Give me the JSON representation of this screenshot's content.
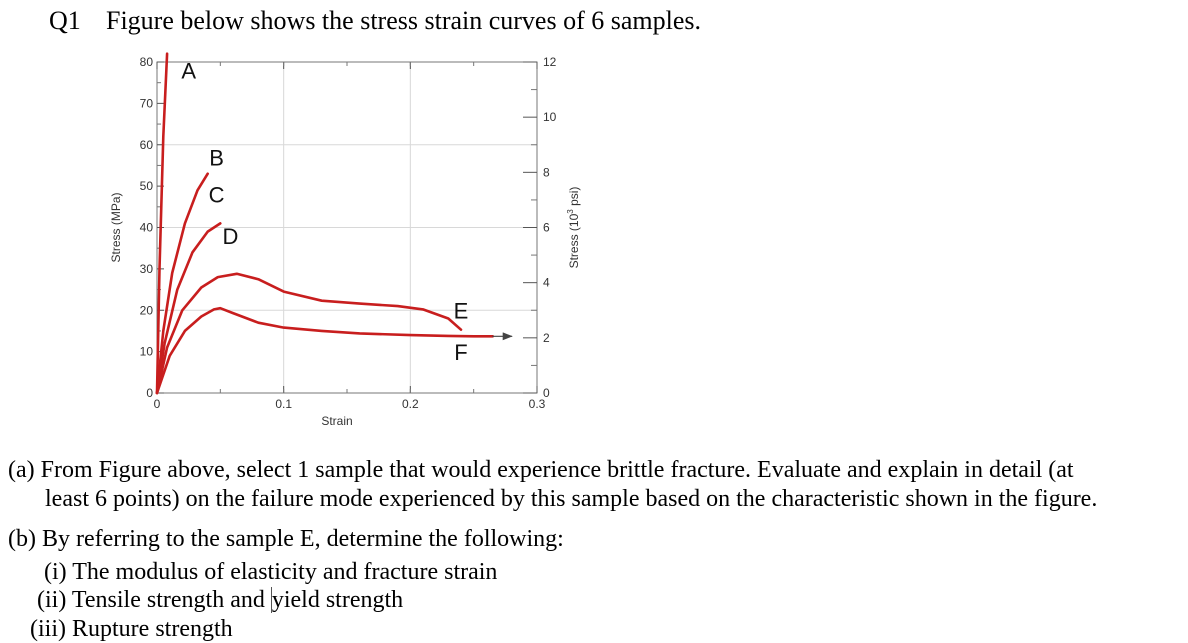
{
  "question": {
    "number": "Q1",
    "text": "Figure below shows the stress strain curves of 6 samples."
  },
  "chart_data": {
    "type": "line",
    "title": "",
    "xlabel": "Strain",
    "ylabel": "Stress (MPa)",
    "y2label_prefix": "Stress (10",
    "y2label_sup": "3",
    "y2label_suffix": " psi)",
    "xlim": [
      0,
      0.3
    ],
    "ylim": [
      0,
      80
    ],
    "y2lim": [
      0,
      12
    ],
    "x_ticks": [
      "0",
      "0.1",
      "0.2",
      "0.3"
    ],
    "x_tick_values": [
      0,
      0.1,
      0.2,
      0.3
    ],
    "y_ticks": [
      "0",
      "10",
      "20",
      "30",
      "40",
      "50",
      "60",
      "70",
      "80"
    ],
    "y_tick_values": [
      0,
      10,
      20,
      30,
      40,
      50,
      60,
      70,
      80
    ],
    "y2_ticks": [
      "0",
      "2",
      "4",
      "6",
      "8",
      "10",
      "12"
    ],
    "y2_tick_values": [
      0,
      2,
      4,
      6,
      8,
      10,
      12
    ],
    "grid": true,
    "line_color": "#c81e1e",
    "series": [
      {
        "name": "A",
        "x": [
          0,
          0.002,
          0.005,
          0.008
        ],
        "y": [
          0,
          30,
          62,
          82
        ]
      },
      {
        "name": "B",
        "x": [
          0,
          0.005,
          0.012,
          0.022,
          0.032,
          0.04
        ],
        "y": [
          0,
          15,
          29,
          41,
          49,
          53
        ]
      },
      {
        "name": "C",
        "x": [
          0,
          0.006,
          0.016,
          0.028,
          0.04,
          0.05
        ],
        "y": [
          0,
          12,
          25,
          34,
          39,
          41
        ]
      },
      {
        "name": "D",
        "x": [
          0,
          0.008,
          0.02,
          0.035,
          0.048,
          0.063,
          0.08,
          0.1,
          0.13,
          0.16,
          0.19,
          0.21,
          0.23,
          0.24
        ],
        "y": [
          0,
          11,
          20,
          25.5,
          28,
          28.8,
          27.5,
          24.5,
          22.3,
          21.6,
          21,
          20.2,
          18,
          15.3
        ]
      },
      {
        "name": "E",
        "x": [
          0,
          0.01,
          0.022,
          0.035,
          0.045,
          0.05,
          0.06,
          0.08,
          0.1,
          0.13,
          0.16,
          0.2,
          0.23,
          0.25,
          0.265
        ],
        "y": [
          0,
          9,
          15,
          18.5,
          20.2,
          20.5,
          19.3,
          17,
          15.8,
          15,
          14.4,
          14,
          13.8,
          13.7,
          13.7
        ]
      },
      {
        "name": "F",
        "x": [
          0.265,
          0.28
        ],
        "y": [
          13.7,
          13.7
        ],
        "arrow": true
      }
    ],
    "curve_labels": [
      {
        "text": "A",
        "x": 0.025,
        "y": 76
      },
      {
        "text": "B",
        "x": 0.047,
        "y": 55
      },
      {
        "text": "C",
        "x": 0.047,
        "y": 46
      },
      {
        "text": "D",
        "x": 0.058,
        "y": 36
      },
      {
        "text": "E",
        "x": 0.24,
        "y": 18
      },
      {
        "text": "F",
        "x": 0.24,
        "y": 8
      }
    ]
  },
  "parts": {
    "a_label": "(a)",
    "a_line1": "From Figure above, select 1 sample that would experience brittle fracture. Evaluate and explain in detail (at",
    "a_line2": "least 6 points) on the failure mode experienced by this sample based on the characteristic shown in the figure.",
    "b_label": "(b)",
    "b_text": "By referring to the sample E, determine the following:",
    "i_label": "(i)",
    "i_text": "The modulus of elasticity and fracture strain",
    "ii_label": "(ii)",
    "ii_text_a": "Tensile strength and ",
    "ii_text_b": "yield strength",
    "iii_label": "(iii)",
    "iii_text": "Rupture strength"
  }
}
